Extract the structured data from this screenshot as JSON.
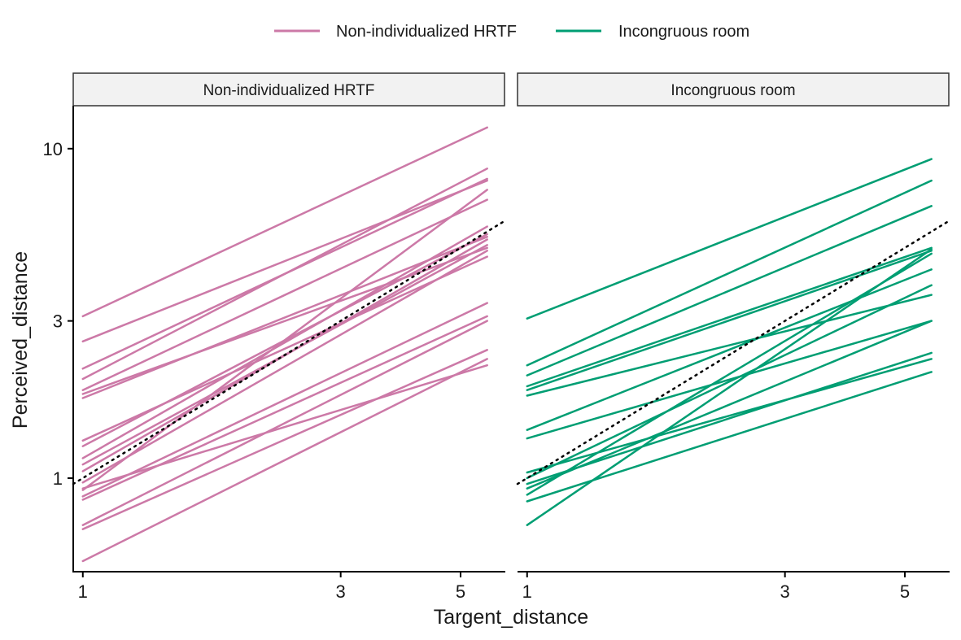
{
  "chart_data": {
    "type": "line",
    "scale": {
      "x": "log",
      "y": "log"
    },
    "xlabel": "Targent_distance",
    "ylabel": "Perceived_distance",
    "x_ticks": [
      1,
      3,
      5
    ],
    "y_ticks": [
      1,
      3,
      10
    ],
    "xlim": [
      0.96,
      6.05
    ],
    "ylim": [
      0.52,
      13.5
    ],
    "x_range_lines": [
      1,
      5.6
    ],
    "reference_line": {
      "style": "dotted",
      "color": "#000000",
      "slope": 1,
      "intercept": 0
    },
    "legend": {
      "position": "top",
      "entries": [
        {
          "label": "Non-individualized HRTF",
          "color": "#CC79A7"
        },
        {
          "label": "Incongruous room",
          "color": "#009E73"
        }
      ]
    },
    "panels": [
      {
        "strip": "Non-individualized HRTF",
        "color": "#CC79A7",
        "lines": [
          {
            "y_at_1": 3.1,
            "y_at_5_6": 11.6
          },
          {
            "y_at_1": 2.6,
            "y_at_5_6": 8.0
          },
          {
            "y_at_1": 2.15,
            "y_at_5_6": 8.1
          },
          {
            "y_at_1": 2.0,
            "y_at_5_6": 8.7
          },
          {
            "y_at_1": 1.85,
            "y_at_5_6": 7.0
          },
          {
            "y_at_1": 1.8,
            "y_at_5_6": 5.0
          },
          {
            "y_at_1": 1.75,
            "y_at_5_6": 5.4
          },
          {
            "y_at_1": 1.3,
            "y_at_5_6": 4.7
          },
          {
            "y_at_1": 1.25,
            "y_at_5_6": 5.5
          },
          {
            "y_at_1": 1.15,
            "y_at_5_6": 5.8
          },
          {
            "y_at_1": 1.05,
            "y_at_5_6": 5.3
          },
          {
            "y_at_1": 0.97,
            "y_at_5_6": 4.9
          },
          {
            "y_at_1": 0.92,
            "y_at_5_6": 7.5
          },
          {
            "y_at_1": 0.88,
            "y_at_5_6": 3.4
          },
          {
            "y_at_1": 0.86,
            "y_at_5_6": 3.1
          },
          {
            "y_at_1": 0.72,
            "y_at_5_6": 3.0
          },
          {
            "y_at_1": 0.7,
            "y_at_5_6": 2.45
          },
          {
            "y_at_1": 0.56,
            "y_at_5_6": 2.3
          },
          {
            "y_at_1": 0.93,
            "y_at_5_6": 2.2
          },
          {
            "y_at_1": 1.1,
            "y_at_5_6": 5.1
          }
        ]
      },
      {
        "strip": "Incongruous room",
        "color": "#009E73",
        "lines": [
          {
            "y_at_1": 3.05,
            "y_at_5_6": 9.3
          },
          {
            "y_at_1": 2.2,
            "y_at_5_6": 8.0
          },
          {
            "y_at_1": 2.05,
            "y_at_5_6": 6.7
          },
          {
            "y_at_1": 1.9,
            "y_at_5_6": 5.0
          },
          {
            "y_at_1": 1.85,
            "y_at_5_6": 4.9
          },
          {
            "y_at_1": 1.78,
            "y_at_5_6": 3.6
          },
          {
            "y_at_1": 1.4,
            "y_at_5_6": 4.3
          },
          {
            "y_at_1": 1.32,
            "y_at_5_6": 3.0
          },
          {
            "y_at_1": 1.04,
            "y_at_5_6": 2.3
          },
          {
            "y_at_1": 1.0,
            "y_at_5_6": 3.85
          },
          {
            "y_at_1": 0.96,
            "y_at_5_6": 2.4
          },
          {
            "y_at_1": 0.93,
            "y_at_5_6": 3.0
          },
          {
            "y_at_1": 0.89,
            "y_at_5_6": 4.8
          },
          {
            "y_at_1": 0.85,
            "y_at_5_6": 2.1
          },
          {
            "y_at_1": 0.72,
            "y_at_5_6": 4.95
          }
        ]
      }
    ]
  }
}
